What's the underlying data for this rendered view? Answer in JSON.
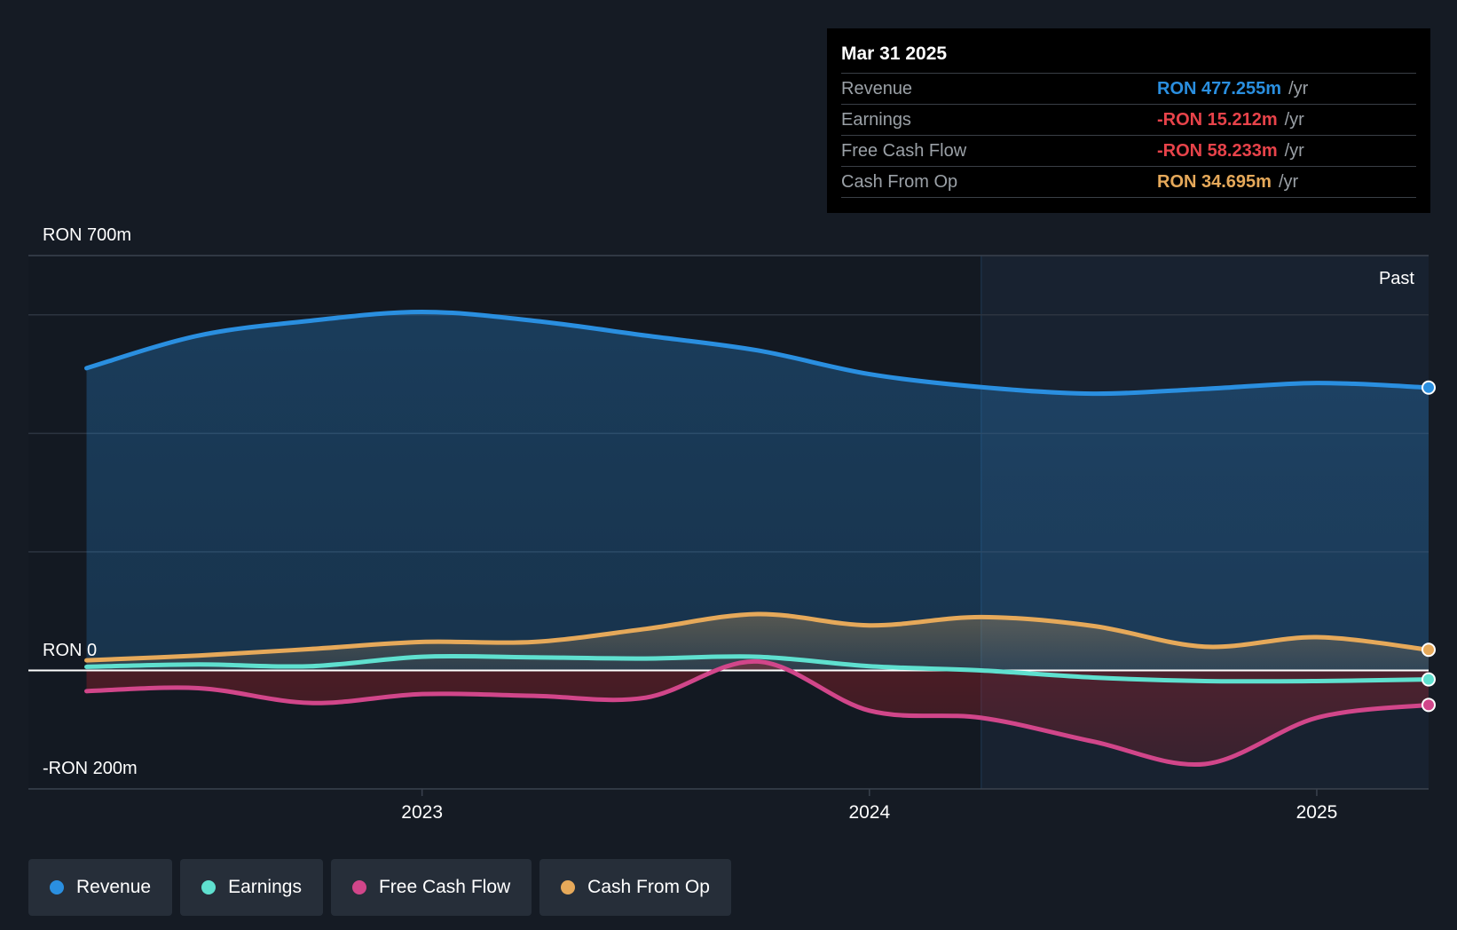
{
  "colors": {
    "revenue": "#2a8fe0",
    "earnings": "#5fe0cf",
    "fcf": "#d1468a",
    "cfo": "#e6a95a",
    "grid": "#2c3440",
    "zero": "#ffffff"
  },
  "tooltip": {
    "date": "Mar 31 2025",
    "rows": [
      {
        "name": "Revenue",
        "value": "RON 477.255m",
        "unit": "/yr",
        "color": "#2a8fe0"
      },
      {
        "name": "Earnings",
        "value": "-RON 15.212m",
        "unit": "/yr",
        "color": "#e8434a"
      },
      {
        "name": "Free Cash Flow",
        "value": "-RON 58.233m",
        "unit": "/yr",
        "color": "#e8434a"
      },
      {
        "name": "Cash From Op",
        "value": "RON 34.695m",
        "unit": "/yr",
        "color": "#e6a95a"
      }
    ]
  },
  "legend": [
    {
      "label": "Revenue",
      "color": "#2a8fe0"
    },
    {
      "label": "Earnings",
      "color": "#5fe0cf"
    },
    {
      "label": "Free Cash Flow",
      "color": "#d1468a"
    },
    {
      "label": "Cash From Op",
      "color": "#e6a95a"
    }
  ],
  "chart_data": {
    "type": "area",
    "ylim": [
      -200,
      700
    ],
    "y_axis_labels": [
      "RON 700m",
      "RON 0",
      "-RON 200m"
    ],
    "x_ticks": [
      {
        "label": "2023",
        "x": 2023.0
      },
      {
        "label": "2024",
        "x": 2024.0
      },
      {
        "label": "2025",
        "x": 2025.0
      }
    ],
    "x_range": [
      2022.12,
      2025.25
    ],
    "past_start": 2024.25,
    "past_label": "Past",
    "series": [
      {
        "name": "Revenue",
        "key": "revenue",
        "points": [
          [
            2022.25,
            510
          ],
          [
            2022.5,
            565
          ],
          [
            2022.75,
            590
          ],
          [
            2023.0,
            605
          ],
          [
            2023.25,
            590
          ],
          [
            2023.5,
            565
          ],
          [
            2023.75,
            540
          ],
          [
            2024.0,
            500
          ],
          [
            2024.25,
            478
          ],
          [
            2024.5,
            467
          ],
          [
            2024.75,
            475
          ],
          [
            2025.0,
            485
          ],
          [
            2025.25,
            477.255
          ]
        ]
      },
      {
        "name": "Earnings",
        "key": "earnings",
        "points": [
          [
            2022.25,
            6
          ],
          [
            2022.5,
            10
          ],
          [
            2022.75,
            7
          ],
          [
            2023.0,
            23
          ],
          [
            2023.25,
            22
          ],
          [
            2023.5,
            20
          ],
          [
            2023.75,
            23
          ],
          [
            2024.0,
            7
          ],
          [
            2024.25,
            0
          ],
          [
            2024.5,
            -12
          ],
          [
            2024.75,
            -18
          ],
          [
            2025.0,
            -18
          ],
          [
            2025.25,
            -15.212
          ]
        ]
      },
      {
        "name": "Free Cash Flow",
        "key": "fcf",
        "points": [
          [
            2022.25,
            -35
          ],
          [
            2022.5,
            -30
          ],
          [
            2022.75,
            -55
          ],
          [
            2023.0,
            -40
          ],
          [
            2023.25,
            -43
          ],
          [
            2023.5,
            -46
          ],
          [
            2023.75,
            15
          ],
          [
            2024.0,
            -68
          ],
          [
            2024.25,
            -80
          ],
          [
            2024.5,
            -120
          ],
          [
            2024.75,
            -158
          ],
          [
            2025.0,
            -80
          ],
          [
            2025.25,
            -58.233
          ]
        ]
      },
      {
        "name": "Cash From Op",
        "key": "cfo",
        "points": [
          [
            2022.25,
            17
          ],
          [
            2022.5,
            25
          ],
          [
            2022.75,
            36
          ],
          [
            2023.0,
            48
          ],
          [
            2023.25,
            48
          ],
          [
            2023.5,
            70
          ],
          [
            2023.75,
            95
          ],
          [
            2024.0,
            76
          ],
          [
            2024.25,
            90
          ],
          [
            2024.5,
            75
          ],
          [
            2024.75,
            40
          ],
          [
            2025.0,
            56
          ],
          [
            2025.25,
            34.695
          ]
        ]
      }
    ]
  }
}
